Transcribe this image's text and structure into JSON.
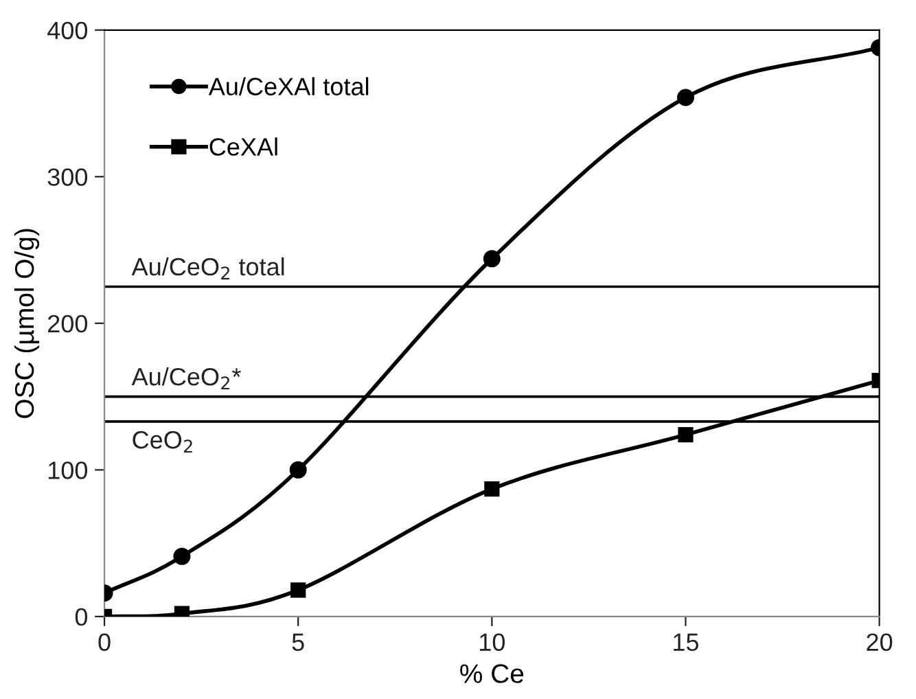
{
  "chart_data": {
    "type": "line",
    "xlabel": "% Ce",
    "ylabel": "OSC (µmol O/g)",
    "x": [
      0,
      2,
      5,
      10,
      15,
      20
    ],
    "series": [
      {
        "name": "Au/CeXAl total",
        "color": "#000000",
        "marker": "circle",
        "values": [
          16,
          41,
          100,
          244,
          354,
          388
        ]
      },
      {
        "name": "CeXAl",
        "color": "#000000",
        "marker": "square",
        "values": [
          0,
          2,
          18,
          87,
          124,
          161
        ]
      }
    ],
    "xlim": [
      0,
      20
    ],
    "xticks": [
      0,
      5,
      10,
      15,
      20
    ],
    "ylim": [
      0,
      400
    ],
    "yticks": [
      0,
      100,
      200,
      300,
      400
    ],
    "ref_lines": [
      {
        "axis": "y",
        "value": 225,
        "label": "Au/CeO$_{2}$ total",
        "color": "#000000"
      },
      {
        "axis": "y",
        "value": 150,
        "label": "Au/CeO$_{2}$*",
        "color": "#000000"
      },
      {
        "axis": "y",
        "value": 133,
        "label": "CeO$_{2}$",
        "color": "#000000"
      }
    ],
    "grid": false,
    "legend": "top left",
    "line_style": "solid"
  }
}
